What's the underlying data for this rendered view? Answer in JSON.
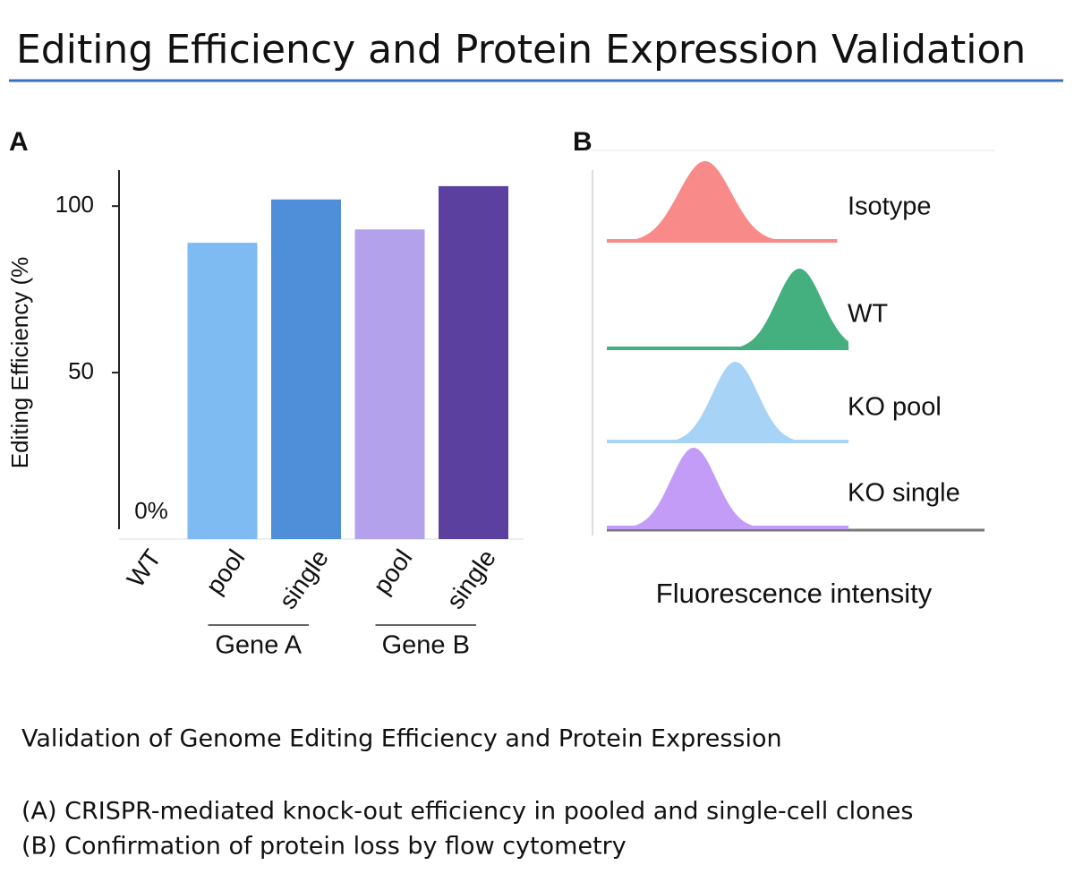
{
  "title": "Editing Efficiency and Protein Expression Validation",
  "chart_data": [
    {
      "type": "bar",
      "panel": "A",
      "ylabel": "Editing Efficiency (%",
      "categories": [
        "WT",
        "pool",
        "single",
        "pool",
        "single"
      ],
      "groups": [
        "Gene A",
        "Gene B"
      ],
      "values": [
        0,
        89,
        102,
        93,
        106
      ],
      "value_labels": [
        "0%",
        null,
        null,
        null,
        null
      ],
      "colors": [
        "#7fbbf3",
        "#7fbbf3",
        "#4f8ed8",
        "#b3a1ec",
        "#5b409f"
      ],
      "ylim": [
        0,
        110
      ],
      "yticks": [
        50,
        100
      ],
      "grid": false
    },
    {
      "type": "density",
      "panel": "B",
      "xlabel": "Fluorescence intensity",
      "series": [
        {
          "name": "Isotype",
          "color": "#f98a8a",
          "center": 26,
          "spread": 7,
          "range": [
            0,
            61
          ]
        },
        {
          "name": "WT",
          "color": "#45b07f",
          "center": 51,
          "spread": 6,
          "range": [
            0,
            64
          ]
        },
        {
          "name": "KO pool",
          "color": "#a7d3f7",
          "center": 34,
          "spread": 6,
          "range": [
            0,
            64
          ]
        },
        {
          "name": "KO single",
          "color": "#c29cf6",
          "center": 23,
          "spread": 6,
          "range": [
            0,
            64
          ]
        }
      ]
    }
  ],
  "caption": {
    "heading": "Validation of Genome Editing Efficiency and Protein Expression",
    "lines": [
      "(A) CRISPR-mediated knock-out efficiency in pooled and single-cell clones",
      "(B) Confirmation of protein loss by flow cytometry"
    ]
  }
}
